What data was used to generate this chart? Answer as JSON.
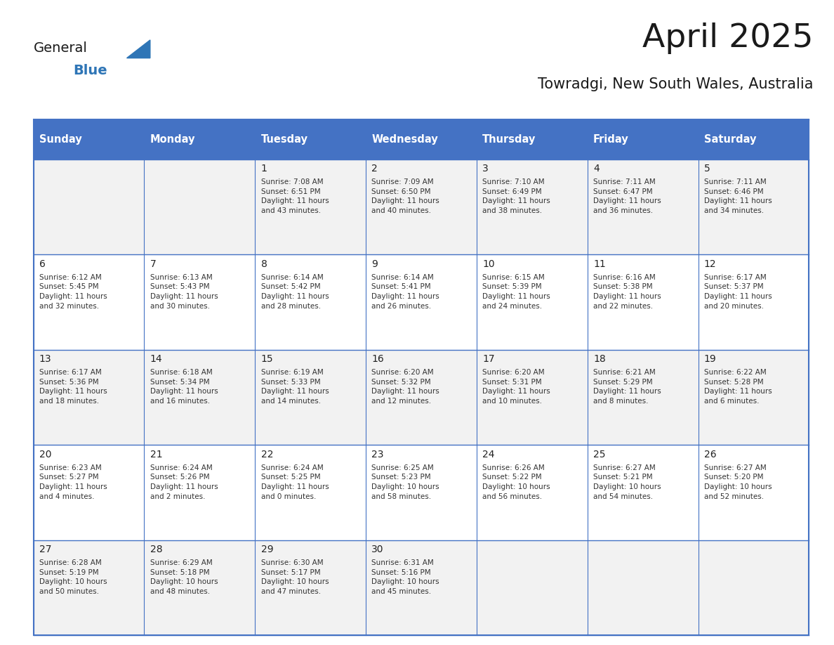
{
  "title": "April 2025",
  "subtitle": "Towradgi, New South Wales, Australia",
  "header_bg": "#4472C4",
  "header_text": "#FFFFFF",
  "row_bg_odd": "#F2F2F2",
  "row_bg_even": "#FFFFFF",
  "cell_border": "#4472C4",
  "day_headers": [
    "Sunday",
    "Monday",
    "Tuesday",
    "Wednesday",
    "Thursday",
    "Friday",
    "Saturday"
  ],
  "logo_general_color": "#1a1a1a",
  "logo_blue_color": "#2E75B6",
  "weeks": [
    [
      {
        "day": "",
        "info": ""
      },
      {
        "day": "",
        "info": ""
      },
      {
        "day": "1",
        "info": "Sunrise: 7:08 AM\nSunset: 6:51 PM\nDaylight: 11 hours\nand 43 minutes."
      },
      {
        "day": "2",
        "info": "Sunrise: 7:09 AM\nSunset: 6:50 PM\nDaylight: 11 hours\nand 40 minutes."
      },
      {
        "day": "3",
        "info": "Sunrise: 7:10 AM\nSunset: 6:49 PM\nDaylight: 11 hours\nand 38 minutes."
      },
      {
        "day": "4",
        "info": "Sunrise: 7:11 AM\nSunset: 6:47 PM\nDaylight: 11 hours\nand 36 minutes."
      },
      {
        "day": "5",
        "info": "Sunrise: 7:11 AM\nSunset: 6:46 PM\nDaylight: 11 hours\nand 34 minutes."
      }
    ],
    [
      {
        "day": "6",
        "info": "Sunrise: 6:12 AM\nSunset: 5:45 PM\nDaylight: 11 hours\nand 32 minutes."
      },
      {
        "day": "7",
        "info": "Sunrise: 6:13 AM\nSunset: 5:43 PM\nDaylight: 11 hours\nand 30 minutes."
      },
      {
        "day": "8",
        "info": "Sunrise: 6:14 AM\nSunset: 5:42 PM\nDaylight: 11 hours\nand 28 minutes."
      },
      {
        "day": "9",
        "info": "Sunrise: 6:14 AM\nSunset: 5:41 PM\nDaylight: 11 hours\nand 26 minutes."
      },
      {
        "day": "10",
        "info": "Sunrise: 6:15 AM\nSunset: 5:39 PM\nDaylight: 11 hours\nand 24 minutes."
      },
      {
        "day": "11",
        "info": "Sunrise: 6:16 AM\nSunset: 5:38 PM\nDaylight: 11 hours\nand 22 minutes."
      },
      {
        "day": "12",
        "info": "Sunrise: 6:17 AM\nSunset: 5:37 PM\nDaylight: 11 hours\nand 20 minutes."
      }
    ],
    [
      {
        "day": "13",
        "info": "Sunrise: 6:17 AM\nSunset: 5:36 PM\nDaylight: 11 hours\nand 18 minutes."
      },
      {
        "day": "14",
        "info": "Sunrise: 6:18 AM\nSunset: 5:34 PM\nDaylight: 11 hours\nand 16 minutes."
      },
      {
        "day": "15",
        "info": "Sunrise: 6:19 AM\nSunset: 5:33 PM\nDaylight: 11 hours\nand 14 minutes."
      },
      {
        "day": "16",
        "info": "Sunrise: 6:20 AM\nSunset: 5:32 PM\nDaylight: 11 hours\nand 12 minutes."
      },
      {
        "day": "17",
        "info": "Sunrise: 6:20 AM\nSunset: 5:31 PM\nDaylight: 11 hours\nand 10 minutes."
      },
      {
        "day": "18",
        "info": "Sunrise: 6:21 AM\nSunset: 5:29 PM\nDaylight: 11 hours\nand 8 minutes."
      },
      {
        "day": "19",
        "info": "Sunrise: 6:22 AM\nSunset: 5:28 PM\nDaylight: 11 hours\nand 6 minutes."
      }
    ],
    [
      {
        "day": "20",
        "info": "Sunrise: 6:23 AM\nSunset: 5:27 PM\nDaylight: 11 hours\nand 4 minutes."
      },
      {
        "day": "21",
        "info": "Sunrise: 6:24 AM\nSunset: 5:26 PM\nDaylight: 11 hours\nand 2 minutes."
      },
      {
        "day": "22",
        "info": "Sunrise: 6:24 AM\nSunset: 5:25 PM\nDaylight: 11 hours\nand 0 minutes."
      },
      {
        "day": "23",
        "info": "Sunrise: 6:25 AM\nSunset: 5:23 PM\nDaylight: 10 hours\nand 58 minutes."
      },
      {
        "day": "24",
        "info": "Sunrise: 6:26 AM\nSunset: 5:22 PM\nDaylight: 10 hours\nand 56 minutes."
      },
      {
        "day": "25",
        "info": "Sunrise: 6:27 AM\nSunset: 5:21 PM\nDaylight: 10 hours\nand 54 minutes."
      },
      {
        "day": "26",
        "info": "Sunrise: 6:27 AM\nSunset: 5:20 PM\nDaylight: 10 hours\nand 52 minutes."
      }
    ],
    [
      {
        "day": "27",
        "info": "Sunrise: 6:28 AM\nSunset: 5:19 PM\nDaylight: 10 hours\nand 50 minutes."
      },
      {
        "day": "28",
        "info": "Sunrise: 6:29 AM\nSunset: 5:18 PM\nDaylight: 10 hours\nand 48 minutes."
      },
      {
        "day": "29",
        "info": "Sunrise: 6:30 AM\nSunset: 5:17 PM\nDaylight: 10 hours\nand 47 minutes."
      },
      {
        "day": "30",
        "info": "Sunrise: 6:31 AM\nSunset: 5:16 PM\nDaylight: 10 hours\nand 45 minutes."
      },
      {
        "day": "",
        "info": ""
      },
      {
        "day": "",
        "info": ""
      },
      {
        "day": "",
        "info": ""
      }
    ]
  ]
}
